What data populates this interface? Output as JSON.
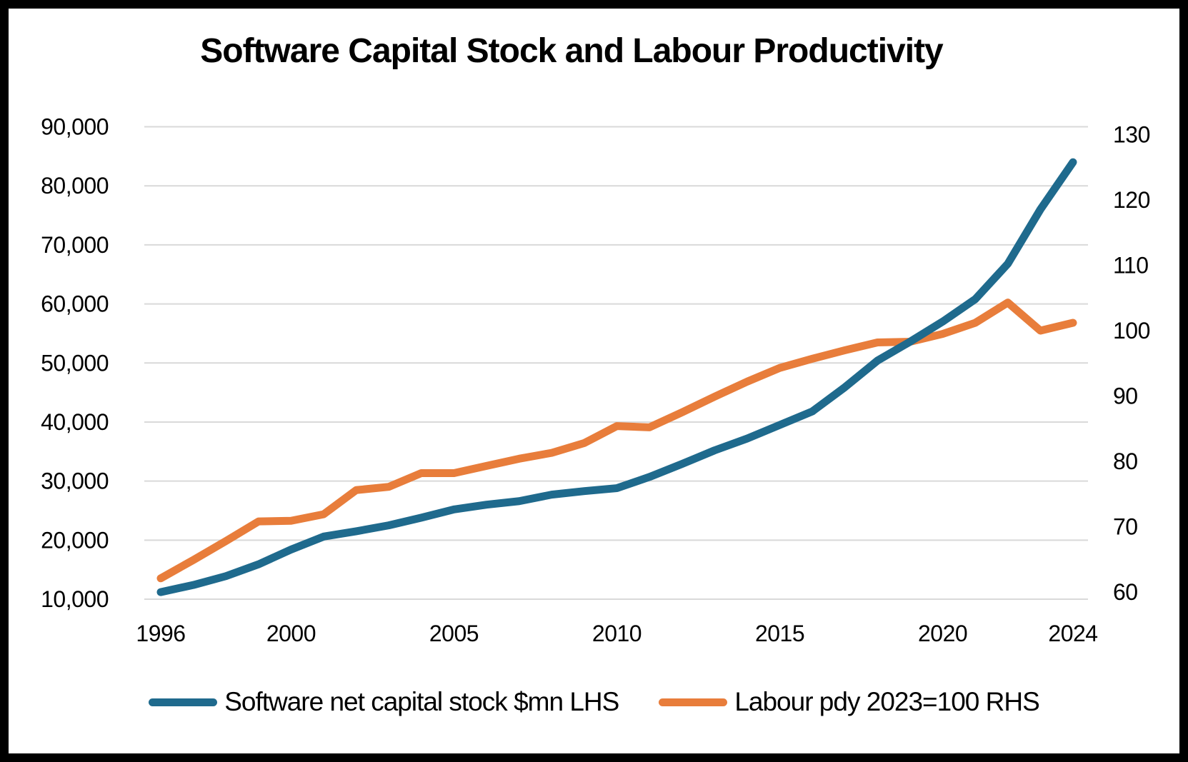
{
  "title": "Software Capital Stock and Labour Productivity",
  "legend": [
    {
      "label": "Software net capital stock $mn LHS",
      "color": "#1F6A8D"
    },
    {
      "label": "Labour pdy 2023=100 RHS",
      "color": "#E87D3B"
    }
  ],
  "colors": {
    "series_blue": "#1F6A8D",
    "series_orange": "#E87D3B",
    "gridline": "#D9D9D9",
    "text": "#000000",
    "background": "#FFFFFF",
    "frame": "#000000"
  },
  "chart_data": {
    "type": "line",
    "title": "Software Capital Stock and Labour Productivity",
    "x": [
      1996,
      1997,
      1998,
      1999,
      2000,
      2001,
      2002,
      2003,
      2004,
      2005,
      2006,
      2007,
      2008,
      2009,
      2010,
      2011,
      2012,
      2013,
      2014,
      2015,
      2016,
      2017,
      2018,
      2019,
      2020,
      2021,
      2022,
      2023,
      2024
    ],
    "x_tick_labels": [
      "1996",
      "2000",
      "2005",
      "2010",
      "2015",
      "2020",
      "2024"
    ],
    "x_tick_values": [
      1996,
      2000,
      2005,
      2010,
      2015,
      2020,
      2024
    ],
    "grid": true,
    "legend_position": "bottom",
    "left_axis": {
      "min": 10000,
      "max": 90000,
      "tick_step": 10000,
      "ticks": [
        {
          "value": 90000,
          "label": "90,000"
        },
        {
          "value": 80000,
          "label": "80,000"
        },
        {
          "value": 70000,
          "label": "70,000"
        },
        {
          "value": 60000,
          "label": "60,000"
        },
        {
          "value": 50000,
          "label": "50,000"
        },
        {
          "value": 40000,
          "label": "40,000"
        },
        {
          "value": 30000,
          "label": "30,000"
        },
        {
          "value": 20000,
          "label": "20,000"
        },
        {
          "value": 10000,
          "label": "10,000"
        }
      ]
    },
    "right_axis": {
      "min": 60,
      "max": 130,
      "tick_step": 10,
      "ticks": [
        {
          "value": 130,
          "label": "130"
        },
        {
          "value": 120,
          "label": "120"
        },
        {
          "value": 110,
          "label": "110"
        },
        {
          "value": 100,
          "label": "100"
        },
        {
          "value": 90,
          "label": "90"
        },
        {
          "value": 80,
          "label": "80"
        },
        {
          "value": 70,
          "label": "70"
        },
        {
          "value": 60,
          "label": "60"
        }
      ]
    },
    "series": [
      {
        "name": "Software net capital stock $mn LHS",
        "axis": "left",
        "color": "#1F6A8D",
        "values": [
          11200,
          12400,
          13900,
          15900,
          18400,
          20600,
          21500,
          22500,
          23800,
          25200,
          26000,
          26600,
          27700,
          28300,
          28800,
          30700,
          32900,
          35200,
          37200,
          39500,
          41800,
          45900,
          50400,
          53600,
          57000,
          60800,
          66800,
          76000,
          84000
        ]
      },
      {
        "name": "Labour pdy 2023=100 RHS",
        "axis": "right",
        "color": "#E87D3B",
        "values": [
          62.1,
          64.9,
          67.8,
          70.8,
          70.9,
          71.9,
          75.6,
          76.1,
          78.2,
          78.2,
          79.3,
          80.4,
          81.3,
          82.8,
          85.4,
          85.2,
          87.5,
          89.9,
          92.2,
          94.3,
          95.7,
          97.0,
          98.2,
          98.3,
          99.5,
          101.2,
          104.3,
          100.0,
          101.2
        ]
      }
    ]
  }
}
